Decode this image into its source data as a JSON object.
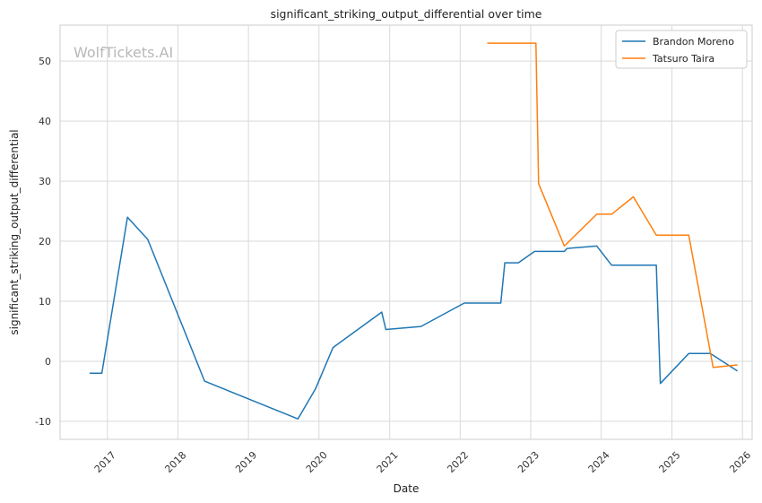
{
  "chart_data": {
    "type": "line",
    "title": "significant_striking_output_differential over time",
    "xlabel": "Date",
    "ylabel": "significant_striking_output_differential",
    "watermark": "WolfTickets.AI",
    "xlim": [
      "2016-05-01",
      "2026-02-20"
    ],
    "ylim": [
      -13,
      56
    ],
    "x_ticks": [
      "2017",
      "2018",
      "2019",
      "2020",
      "2021",
      "2022",
      "2023",
      "2024",
      "2025",
      "2026"
    ],
    "y_ticks": [
      -10,
      0,
      10,
      20,
      30,
      40,
      50
    ],
    "grid": true,
    "legend_position": "top-right",
    "series": [
      {
        "name": "Brandon Moreno",
        "color": "#1f77b4",
        "points": [
          [
            "2016-10-01",
            -2.0
          ],
          [
            "2016-12-03",
            -2.0
          ],
          [
            "2017-04-15",
            24.0
          ],
          [
            "2017-07-29",
            20.3
          ],
          [
            "2018-05-19",
            -3.3
          ],
          [
            "2019-09-14",
            -9.6
          ],
          [
            "2019-12-14",
            -4.6
          ],
          [
            "2020-03-14",
            2.3
          ],
          [
            "2020-11-21",
            8.2
          ],
          [
            "2020-12-12",
            5.3
          ],
          [
            "2021-06-12",
            5.8
          ],
          [
            "2022-01-22",
            9.7
          ],
          [
            "2022-07-30",
            9.7
          ],
          [
            "2022-08-20",
            16.4
          ],
          [
            "2022-10-29",
            16.4
          ],
          [
            "2023-01-21",
            18.3
          ],
          [
            "2023-06-24",
            18.3
          ],
          [
            "2023-07-08",
            18.8
          ],
          [
            "2023-12-09",
            19.2
          ],
          [
            "2024-02-24",
            16.0
          ],
          [
            "2024-10-12",
            16.0
          ],
          [
            "2024-11-02",
            -3.7
          ],
          [
            "2025-03-29",
            1.3
          ],
          [
            "2025-07-19",
            1.3
          ],
          [
            "2025-12-06",
            -1.6
          ]
        ]
      },
      {
        "name": "Tatsuro Taira",
        "color": "#ff7f0e",
        "points": [
          [
            "2022-05-21",
            53.0
          ],
          [
            "2023-01-28",
            53.0
          ],
          [
            "2023-02-11",
            29.6
          ],
          [
            "2023-06-24",
            19.2
          ],
          [
            "2023-12-09",
            24.5
          ],
          [
            "2024-02-24",
            24.5
          ],
          [
            "2024-06-15",
            27.4
          ],
          [
            "2024-10-12",
            21.0
          ],
          [
            "2025-03-29",
            21.0
          ],
          [
            "2025-08-02",
            -1.0
          ],
          [
            "2025-12-06",
            -0.6
          ]
        ]
      }
    ]
  }
}
